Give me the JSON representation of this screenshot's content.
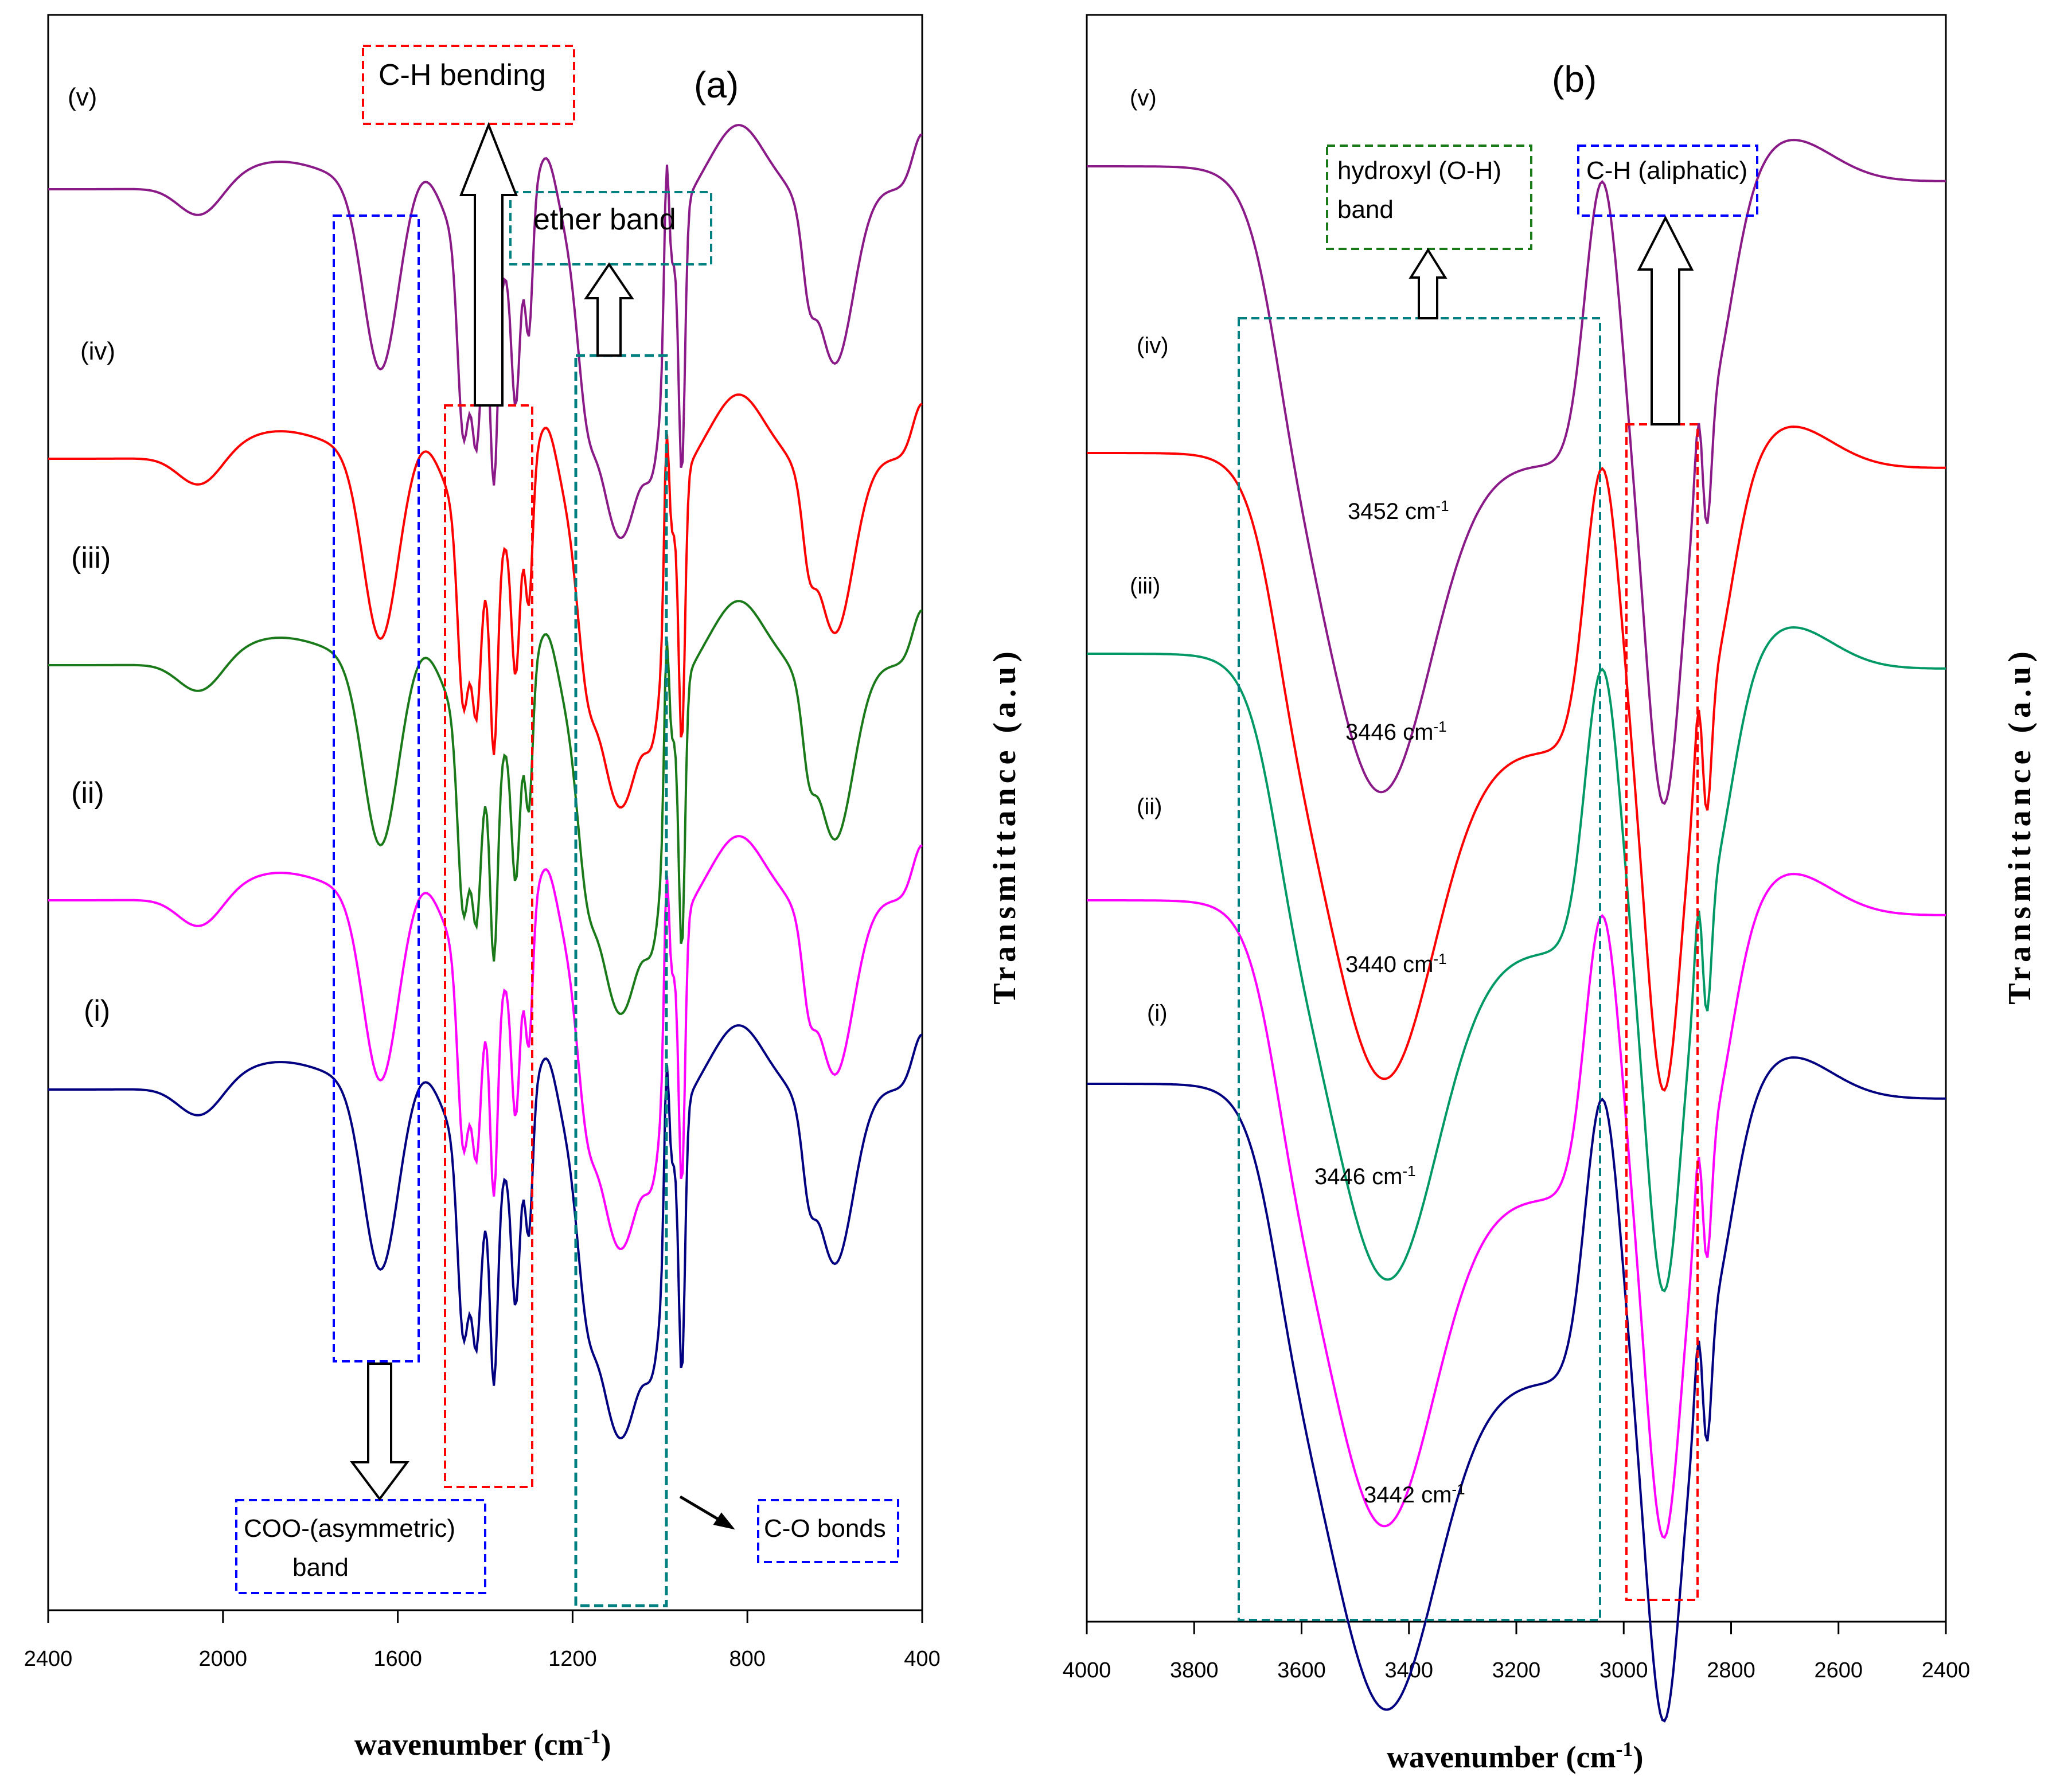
{
  "chart_data": [
    {
      "type": "line",
      "title": "(a)",
      "xlabel": "wavenumber (cm-1)",
      "xlabel_base": "wavenumber (cm",
      "xlabel_sup": "-1",
      "xlabel_close": ")",
      "ylabel": "Transmittance (a.u)",
      "xlim": [
        2400,
        400
      ],
      "x_ticks": [
        2400,
        2000,
        1600,
        1200,
        800,
        400
      ],
      "x_tick_labels": [
        "2400",
        "2000",
        "1600",
        "1200",
        "800",
        "400"
      ],
      "grid": false,
      "series": [
        {
          "name": "(v)",
          "color": "#8B1A89",
          "offset": 0.0
        },
        {
          "name": "(iv)",
          "color": "#FF0000",
          "offset": 1.0
        },
        {
          "name": "(iii)",
          "color": "#1A7A1A",
          "offset": 2.0
        },
        {
          "name": "(ii)",
          "color": "#FF00FF",
          "offset": 3.0
        },
        {
          "name": "(i)",
          "color": "#000080",
          "offset": 4.0
        }
      ],
      "annotations": {
        "ch_bending": "C-H bending",
        "ether_band": "ether band",
        "coo_line1": "COO-(asymmetric)",
        "coo_line2": "band",
        "co_bonds": "C-O bonds"
      },
      "annotation_colors": {
        "blue": "#0000FF",
        "red": "#FF0000",
        "teal": "#008080"
      }
    },
    {
      "type": "line",
      "title": "(b)",
      "xlabel": "wavenumber (cm-1)",
      "xlabel_base": "wavenumber (cm",
      "xlabel_sup": "-1",
      "xlabel_close": ")",
      "ylabel": "Transmittance (a.u)",
      "xlim": [
        4000,
        2400
      ],
      "x_ticks": [
        4000,
        3800,
        3600,
        3400,
        3200,
        3000,
        2800,
        2600,
        2400
      ],
      "x_tick_labels": [
        "4000",
        "3800",
        "3600",
        "3400",
        "3200",
        "3000",
        "2800",
        "2600",
        "2400"
      ],
      "grid": false,
      "series": [
        {
          "name": "(v)",
          "color": "#8B1A89",
          "peak_label": "3452 cm-1",
          "peak_num": "3452 cm",
          "peak_sup": "-1",
          "peak": 3452
        },
        {
          "name": "(iv)",
          "color": "#FF0000",
          "peak_label": "3446 cm-1",
          "peak_num": "3446 cm",
          "peak_sup": "-1",
          "peak": 3446
        },
        {
          "name": "(iii)",
          "color": "#009966",
          "peak_label": "3440 cm-1",
          "peak_num": "3440 cm",
          "peak_sup": "-1",
          "peak": 3440
        },
        {
          "name": "(ii)",
          "color": "#FF00FF",
          "peak_label": "3446 cm-1",
          "peak_num": "3446 cm",
          "peak_sup": "-1",
          "peak": 3446
        },
        {
          "name": "(i)",
          "color": "#000080",
          "peak_label": "3442 cm-1",
          "peak_num": "3442 cm",
          "peak_sup": "-1",
          "peak": 3442
        }
      ],
      "annotations": {
        "hydroxyl_line1": "hydroxyl (O-H)",
        "hydroxyl_line2": "band",
        "ch_aliphatic": "C-H (aliphatic)"
      },
      "annotation_colors": {
        "green": "#1A7A1A",
        "blue": "#0000FF",
        "red": "#FF0000",
        "teal": "#008080"
      }
    }
  ]
}
